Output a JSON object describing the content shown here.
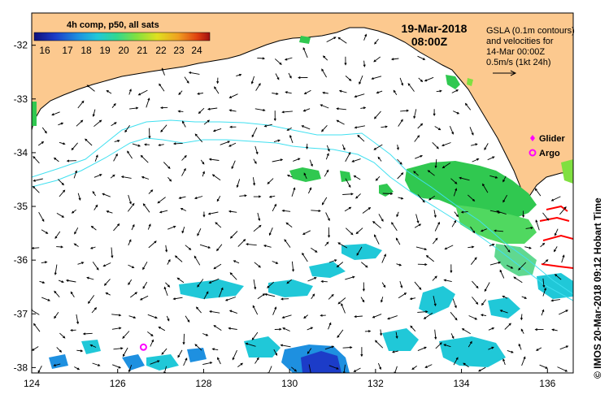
{
  "colorbar": {
    "title": "4h comp, p50, all sats",
    "ticks": [
      "16",
      "17",
      "18",
      "19",
      "20",
      "21",
      "22",
      "23",
      "24"
    ],
    "colors": [
      "#10107a",
      "#1c3cc8",
      "#1e90e0",
      "#20c8d8",
      "#30d890",
      "#80e040",
      "#e0e020",
      "#f0a020",
      "#e04010",
      "#a01010"
    ]
  },
  "header": {
    "date": "19-Mar-2018",
    "time": "08:00Z"
  },
  "gsla_note": {
    "line1": "GSLA (0.1m contours)",
    "line2": "and velocities for",
    "line3": "14-Mar 00:00Z",
    "line4": "0.5m/s (1kt 24h)"
  },
  "legend": {
    "glider_label": "Glider",
    "argo_label": "Argo",
    "glider_color": "#ff00ff",
    "argo_color": "#ff00ff"
  },
  "credit": "© IMOS 20-Mar-2018 09:12 Hobart Time",
  "axes": {
    "lon_ticks": [
      "124",
      "126",
      "128",
      "130",
      "132",
      "134",
      "136"
    ],
    "lat_ticks": [
      "-32",
      "-33",
      "-34",
      "-35",
      "-36",
      "-37",
      "-38"
    ],
    "lon_range": [
      124,
      136.6
    ],
    "lat_range": [
      -31.4,
      -38.1
    ]
  },
  "colors": {
    "land": "#fcc98f",
    "contour": "#40e0f0",
    "arrow": "#000000",
    "glider_track": "#ff0000"
  },
  "argo_float": {
    "lon": 126.6,
    "lat": -37.62
  }
}
